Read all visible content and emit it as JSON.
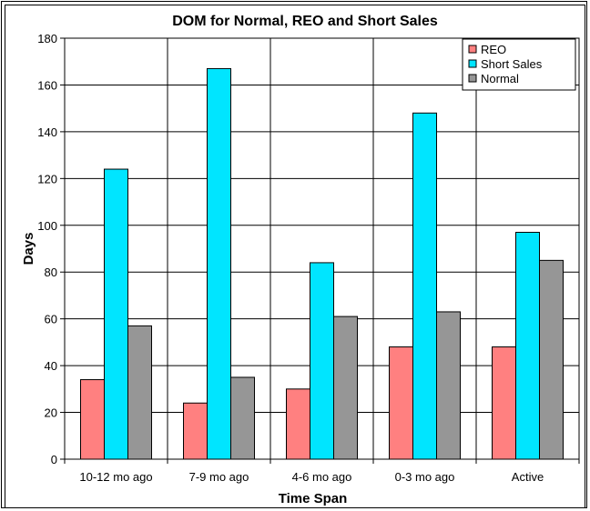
{
  "chart_data": {
    "type": "bar",
    "title": "DOM for Normal, REO and Short Sales",
    "xlabel": "Time Span",
    "ylabel": "Days",
    "ylim": [
      0,
      180
    ],
    "yticks": [
      0,
      20,
      40,
      60,
      80,
      100,
      120,
      140,
      160,
      180
    ],
    "categories": [
      "10-12 mo ago",
      "7-9 mo ago",
      "4-6 mo ago",
      "0-3 mo ago",
      "Active"
    ],
    "series": [
      {
        "name": "REO",
        "color": "#ff8080",
        "values": [
          34,
          24,
          30,
          48,
          48
        ]
      },
      {
        "name": "Short Sales",
        "color": "#00e5ff",
        "values": [
          124,
          167,
          84,
          148,
          97
        ]
      },
      {
        "name": "Normal",
        "color": "#969696",
        "values": [
          57,
          35,
          61,
          63,
          85
        ]
      }
    ],
    "grid": true,
    "legend_position": "top-right"
  }
}
